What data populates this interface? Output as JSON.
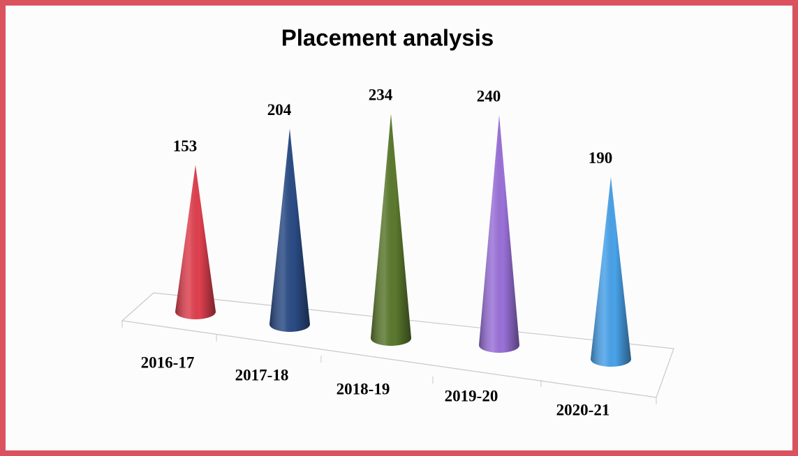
{
  "chart_data": {
    "type": "cone",
    "title": "Placement analysis",
    "categories": [
      "2016-17",
      "2017-18",
      "2018-19",
      "2019-20",
      "2020-21"
    ],
    "values": [
      153,
      204,
      234,
      240,
      190
    ],
    "colors": [
      "#e0404f",
      "#2b4c86",
      "#5b7a2e",
      "#9b72da",
      "#4aa3ea"
    ]
  }
}
